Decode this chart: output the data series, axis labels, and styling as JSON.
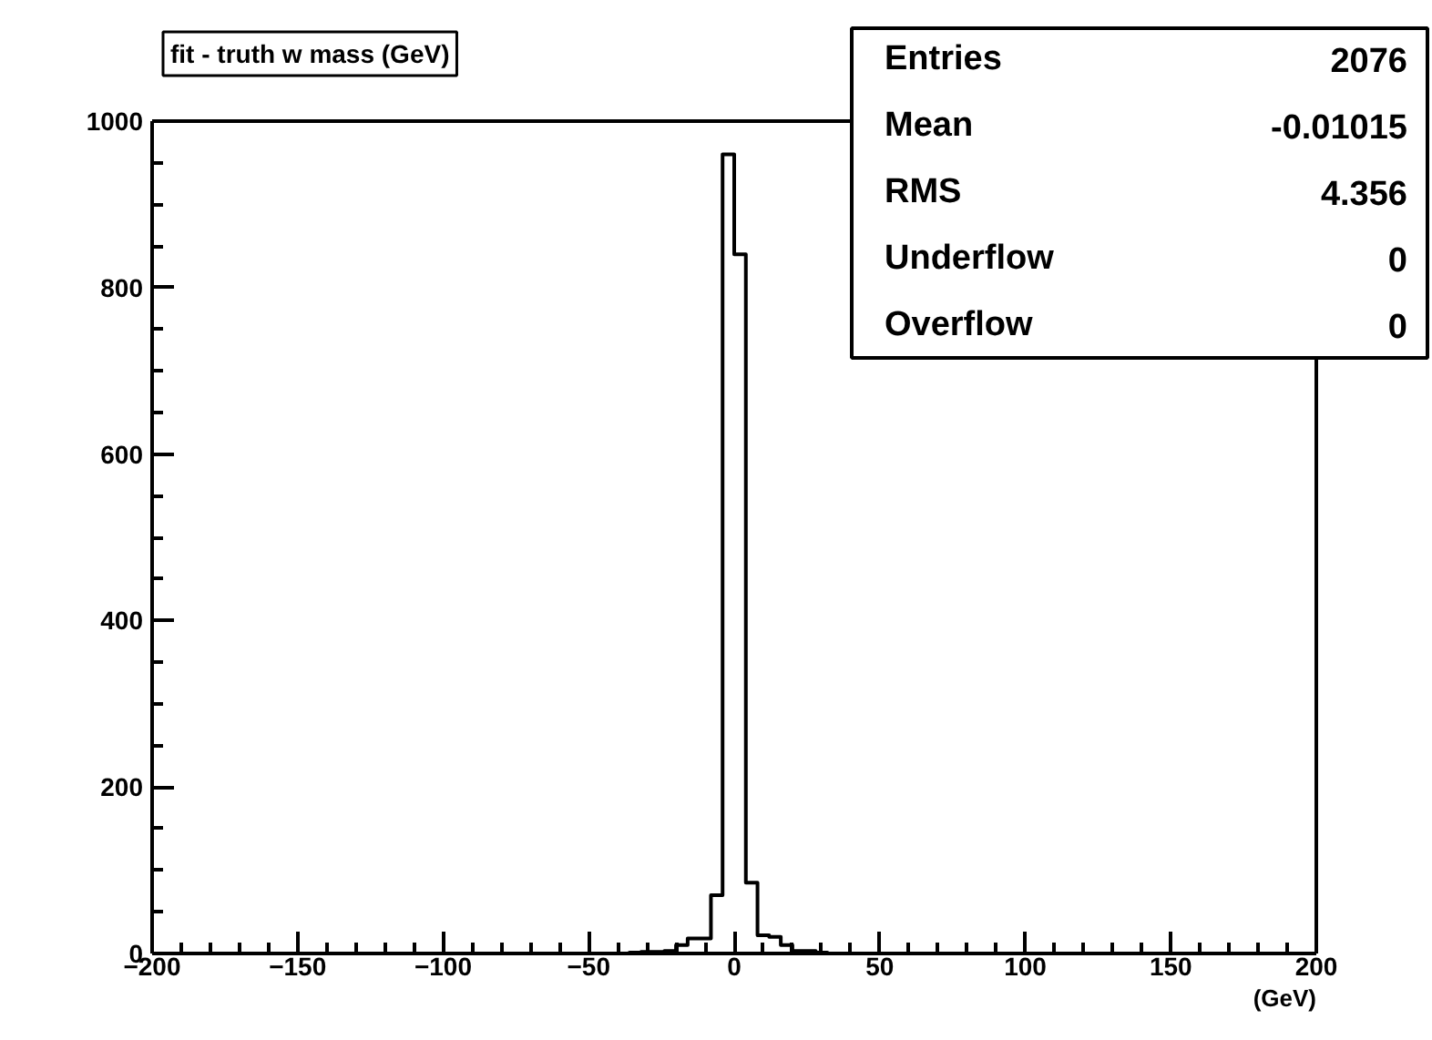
{
  "chart_data": {
    "type": "histogram",
    "title": "fit - truth w mass (GeV)",
    "xlabel": "(GeV)",
    "bins": [
      -36,
      -32,
      -28,
      -24,
      -20,
      -16,
      -12,
      -8,
      -4,
      0,
      4,
      8,
      12,
      16,
      20,
      24,
      28,
      32
    ],
    "values": [
      1,
      2,
      2,
      3,
      10,
      18,
      18,
      70,
      960,
      840,
      85,
      22,
      20,
      10,
      3,
      3,
      1
    ],
    "color": "#000000",
    "xlim": [
      -200,
      200
    ],
    "ylim": [
      0,
      1000
    ],
    "xticks": [
      -200,
      -150,
      -100,
      -50,
      0,
      50,
      100,
      150,
      200
    ],
    "yticks": [
      0,
      200,
      400,
      600,
      800,
      1000
    ],
    "grid": false,
    "annotations": [
      "Entries",
      "2076",
      "Mean",
      "-0.01015",
      "RMS",
      "4.356",
      "Underflow",
      "0",
      "Overflow",
      "0"
    ]
  }
}
